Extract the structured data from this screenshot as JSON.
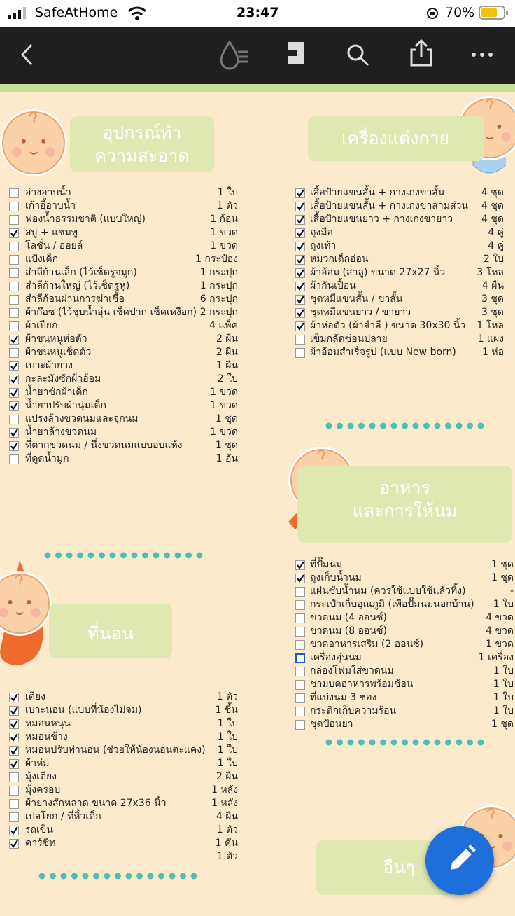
{
  "status_bar": {
    "carrier": "SafeAtHome",
    "time": "23:47",
    "battery": "70%"
  },
  "sections": [
    {
      "title_lines": [
        "อุปกรณ์ทำ",
        "ความสะอาด"
      ],
      "items": [
        {
          "label": "อ่างอาบน้ำ",
          "qty": "1 ใบ",
          "checked": false
        },
        {
          "label": "เก้าอี้อาบน้ำ",
          "qty": "1 ตัว",
          "checked": false
        },
        {
          "label": "ฟองน้ำธรรมชาติ (แบบใหญ่)",
          "qty": "1 ก้อน",
          "checked": false
        },
        {
          "label": "สบู่ + แชมพู",
          "qty": "1 ขวด",
          "checked": true
        },
        {
          "label": "โลชั่น / ออยล์",
          "qty": "1 ขวด",
          "checked": false
        },
        {
          "label": "แป้งเด็ก",
          "qty": "1 กระป๋อง",
          "checked": false
        },
        {
          "label": "สำลีก้านเล็ก (ไว้เช็ดรูจมูก)",
          "qty": "1 กระปุก",
          "checked": false
        },
        {
          "label": "สำลีก้านใหญ่ (ไว้เช็ดรูหู)",
          "qty": "1 กระปุก",
          "checked": false
        },
        {
          "label": "สำลีก้อนผ่านการฆ่าเชื้อ",
          "qty": "6 กระปุก",
          "checked": false
        },
        {
          "label": "ผ้าก๊อซ (ไว้ชุบน้ำอุ่น เช็ดปาก เช็ดเหงือก)",
          "qty": "2 กระปุก",
          "checked": false
        },
        {
          "label": "ผ้าเปียก",
          "qty": "4 แพ็ค",
          "checked": false
        },
        {
          "label": "ผ้าขนหนูห่อตัว",
          "qty": "2 ผืน",
          "checked": true
        },
        {
          "label": "ผ้าขนหนูเช็ดตัว",
          "qty": "2 ผืน",
          "checked": false
        },
        {
          "label": "เบาะผ้ายาง",
          "qty": "1 ผืน",
          "checked": true
        },
        {
          "label": "กะละมังซักผ้าอ้อม",
          "qty": "2 ใบ",
          "checked": true
        },
        {
          "label": "น้ำยาซักผ้าเด็ก",
          "qty": "1 ขวด",
          "checked": true
        },
        {
          "label": "น้ำยาปรับผ้านุ่มเด็ก",
          "qty": "1 ขวด",
          "checked": true
        },
        {
          "label": "แปรงล้างขวดนมและจุกนม",
          "qty": "1 ชุด",
          "checked": false
        },
        {
          "label": "น้ำยาล้างขวดนม",
          "qty": "1 ขวด",
          "checked": true
        },
        {
          "label": "ที่ตากขวดนม / นึ่งขวดนมแบบอบแห้ง",
          "qty": "1 ชุด",
          "checked": true
        },
        {
          "label": "ที่ดูดน้ำมูก",
          "qty": "1 อัน",
          "checked": false
        }
      ]
    },
    {
      "title_lines": [
        "เครื่องแต่งกาย"
      ],
      "items": [
        {
          "label": "เสื้อป้ายแขนสั้น + กางเกงขาสั้น",
          "qty": "4 ชุด",
          "checked": true
        },
        {
          "label": "เสื้อป้ายแขนสั้น + กางเกงขาสามส่วน",
          "qty": "4 ชุด",
          "checked": true
        },
        {
          "label": "เสื้อป้ายแขนยาว + กางเกงขายาว",
          "qty": "4 ชุด",
          "checked": true
        },
        {
          "label": "ถุงมือ",
          "qty": "4 คู่",
          "checked": true
        },
        {
          "label": "ถุงเท้า",
          "qty": "4 คู่",
          "checked": true
        },
        {
          "label": "หมวกเด็กอ่อน",
          "qty": "2 ใบ",
          "checked": true
        },
        {
          "label": "ผ้าอ้อม (สาลู) ขนาด 27x27 นิ้ว",
          "qty": "3 โหล",
          "checked": true
        },
        {
          "label": "ผ้ากันเปื้อน",
          "qty": "4 ผืน",
          "checked": true
        },
        {
          "label": "ชุดหมีแขนสั้น / ขาสั้น",
          "qty": "3 ชุด",
          "checked": true
        },
        {
          "label": "ชุดหมีแขนยาว / ขายาว",
          "qty": "3 ชุด",
          "checked": true
        },
        {
          "label": "ผ้าห่อตัว (ผ้าสำลี ) ขนาด 30x30 นิ้ว",
          "qty": "1 โหล",
          "checked": true
        },
        {
          "label": "เข็มกลัดซ่อนปลาย",
          "qty": "1 แผง",
          "checked": false
        },
        {
          "label": "ผ้าอ้อมสำเร็จรูป (แบบ New born)",
          "qty": "1 ห่อ",
          "checked": false
        }
      ]
    },
    {
      "title_lines": [
        "อาหาร",
        "และการให้นม"
      ],
      "items": [
        {
          "label": "ที่ปั๊มนม",
          "qty": "1 ชุด",
          "checked": true
        },
        {
          "label": "ถุงเก็บน้ำนม",
          "qty": "1 ชุด",
          "checked": true
        },
        {
          "label": "แผ่นซับน้ำนม (ควรใช้แบบใช้แล้วทิ้ง)",
          "qty": "-",
          "checked": false
        },
        {
          "label": "กระเป๋าเก็บอุณภูมิ (เพื่อปั๊มนมนอกบ้าน)",
          "qty": "1 ใบ",
          "checked": false
        },
        {
          "label": "ขวดนม (4 ออนซ์)",
          "qty": "4 ขวด",
          "checked": false
        },
        {
          "label": "ขวดนม (8 ออนซ์)",
          "qty": "4 ขวด",
          "checked": false
        },
        {
          "label": "ขวดอาหารเสริม (2 ออนซ์)",
          "qty": "1 ขวด",
          "checked": false
        },
        {
          "label": "เครื่องอุ่นนม",
          "qty": "1 เครื่อง",
          "checked": false,
          "focused": true
        },
        {
          "label": "กล่องโฟมใส่ขวดนม",
          "qty": "1 ใบ",
          "checked": false
        },
        {
          "label": "ชามบดอาหารพร้อมช้อน",
          "qty": "1 ใบ",
          "checked": false
        },
        {
          "label": "ที่แบ่งนม 3 ช่อง",
          "qty": "1 ใบ",
          "checked": false
        },
        {
          "label": "กระติกเก็บความร้อน",
          "qty": "1 ใบ",
          "checked": false
        },
        {
          "label": "ชุดป้อนยา",
          "qty": "1 ชุด",
          "checked": false
        }
      ]
    },
    {
      "title_lines": [
        "ที่นอน"
      ],
      "items": [
        {
          "label": "เตียง",
          "qty": "1 ตัว",
          "checked": true
        },
        {
          "label": "เบาะนอน (แบบที่น้องไม่จม)",
          "qty": "1 ชิ้น",
          "checked": true
        },
        {
          "label": "หมอนหนุน",
          "qty": "1 ใบ",
          "checked": true
        },
        {
          "label": "หมอนข้าง",
          "qty": "1 ใบ",
          "checked": true
        },
        {
          "label": "หมอนปรับท่านอน (ช่วยให้น้องนอนตะแคง)",
          "qty": "1 ใบ",
          "checked": true
        },
        {
          "label": "ผ้าห่ม",
          "qty": "1 ใบ",
          "checked": true
        },
        {
          "label": "มุ้งเตียง",
          "qty": "2 ผืน",
          "checked": false
        },
        {
          "label": "มุ้งครอบ",
          "qty": "1 หลัง",
          "checked": false
        },
        {
          "label": "ผ้ายางสักหลาด ขนาด 27x36 นิ้ว",
          "qty": "1 หลัง",
          "checked": false
        },
        {
          "label": "เปลโยก / ที่หิ้วเด็ก",
          "qty": "4 ผืน",
          "checked": false
        },
        {
          "label": "รถเข็น",
          "qty": "1 ตัว",
          "checked": true
        },
        {
          "label": "คาร์ซีท",
          "qty": "1 คัน",
          "checked": true
        },
        {
          "qty": "1 ตัว"
        }
      ]
    },
    {
      "title_lines": [
        "อื่นๆ"
      ],
      "items": []
    }
  ]
}
